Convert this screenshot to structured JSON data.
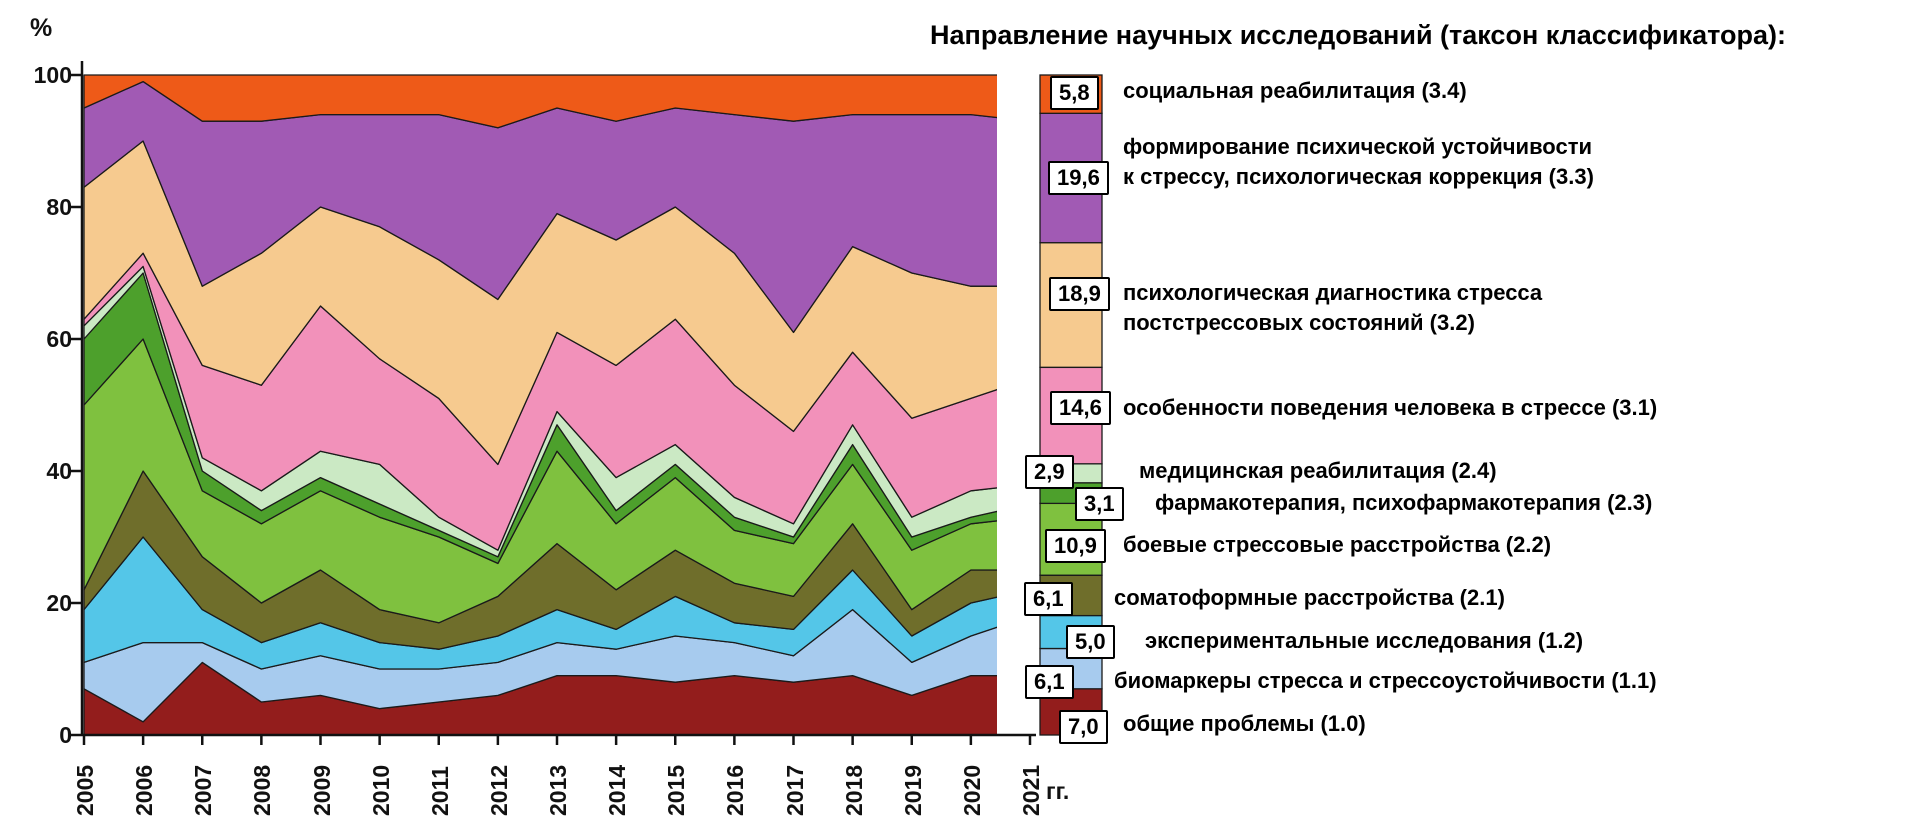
{
  "axes": {
    "y_unit": "%",
    "y_ticks": [
      "100",
      "80",
      "60",
      "40",
      "20",
      "0"
    ],
    "x_ticks": [
      "2005",
      "2006",
      "2007",
      "2008",
      "2009",
      "2010",
      "2011",
      "2012",
      "2013",
      "2014",
      "2015",
      "2016",
      "2017",
      "2018",
      "2019",
      "2020",
      "2021"
    ],
    "x_suffix": "гг."
  },
  "legend": {
    "title": "Направление научных исследований (таксон классификатора):",
    "items": [
      {
        "value": "5,8",
        "lines": [
          "социальная реабилитация (3.4)"
        ],
        "color": "#EE5A18"
      },
      {
        "value": "19,6",
        "lines": [
          "формирование психической устойчивости",
          "к стрессу, психологическая коррекция (3.3)"
        ],
        "color": "#A15AB4"
      },
      {
        "value": "18,9",
        "lines": [
          "психологическая диагностика стресса",
          "постстрессовых состояний (3.2)"
        ],
        "color": "#F6CA8F"
      },
      {
        "value": "14,6",
        "lines": [
          "особенности поведения человека в стрессе (3.1)"
        ],
        "color": "#F291BA"
      },
      {
        "value": "2,9",
        "lines": [
          "медицинская реабилитация (2.4)"
        ],
        "color": "#CBE9C4"
      },
      {
        "value": "3,1",
        "lines": [
          "фармакотерапия, психофармакотерапия (2.3)"
        ],
        "color": "#4DA02C"
      },
      {
        "value": "10,9",
        "lines": [
          "боевые стрессовые расстройства (2.2)"
        ],
        "color": "#7FC13F"
      },
      {
        "value": "6,1",
        "lines": [
          "соматоформные расстройства (2.1)"
        ],
        "color": "#6F6E2B"
      },
      {
        "value": "5,0",
        "lines": [
          "экспериментальные исследования (1.2)"
        ],
        "color": "#54C6E8"
      },
      {
        "value": "6,1",
        "lines": [
          "биомаркеры стресса и стрессоустойчивости (1.1)"
        ],
        "color": "#A7CBEE"
      },
      {
        "value": "7,0",
        "lines": [
          "общие проблемы (1.0)"
        ],
        "color": "#931D1C"
      }
    ]
  },
  "chart_data": {
    "type": "area",
    "stacked": true,
    "normalized_percent": true,
    "title": "Направление научных исследований (таксон классификатора)",
    "xlabel": "гг.",
    "ylabel": "%",
    "ylim": [
      0,
      100
    ],
    "legend_position": "right",
    "x": [
      2005,
      2006,
      2007,
      2008,
      2009,
      2010,
      2011,
      2012,
      2013,
      2014,
      2015,
      2016,
      2017,
      2018,
      2019,
      2020,
      2021
    ],
    "series": [
      {
        "code": "1.0",
        "name": "общие проблемы",
        "color": "#931D1C",
        "avg": 7.0,
        "values": [
          7,
          2,
          11,
          5,
          6,
          4,
          5,
          6,
          9,
          9,
          8,
          9,
          8,
          9,
          6,
          9,
          9
        ]
      },
      {
        "code": "1.1",
        "name": "биомаркеры стресса и стрессоустойчивости",
        "color": "#A7CBEE",
        "avg": 6.1,
        "values": [
          4,
          12,
          3,
          5,
          6,
          6,
          5,
          5,
          5,
          4,
          7,
          5,
          4,
          10,
          5,
          6,
          9
        ]
      },
      {
        "code": "1.2",
        "name": "экспериментальные исследования",
        "color": "#54C6E8",
        "avg": 5.0,
        "values": [
          8,
          16,
          5,
          4,
          5,
          4,
          3,
          4,
          5,
          3,
          6,
          3,
          4,
          6,
          4,
          5,
          4
        ]
      },
      {
        "code": "2.1",
        "name": "соматоформные расстройства",
        "color": "#6F6E2B",
        "avg": 6.1,
        "values": [
          3,
          10,
          8,
          6,
          8,
          5,
          4,
          6,
          10,
          6,
          7,
          6,
          5,
          7,
          4,
          5,
          3
        ]
      },
      {
        "code": "2.2",
        "name": "боевые стрессовые расстройства",
        "color": "#7FC13F",
        "avg": 10.9,
        "values": [
          28,
          20,
          10,
          12,
          12,
          14,
          13,
          5,
          14,
          10,
          11,
          8,
          8,
          9,
          9,
          7,
          8
        ]
      },
      {
        "code": "2.3",
        "name": "фармакотерапия, психофармакотерапия",
        "color": "#4DA02C",
        "avg": 3.1,
        "values": [
          10,
          10,
          3,
          2,
          2,
          2,
          1,
          1,
          4,
          2,
          2,
          2,
          1,
          3,
          2,
          1,
          2
        ]
      },
      {
        "code": "2.4",
        "name": "медицинская реабилитация",
        "color": "#CBE9C4",
        "avg": 2.9,
        "values": [
          2,
          1,
          2,
          3,
          4,
          6,
          2,
          1,
          2,
          5,
          3,
          3,
          2,
          3,
          3,
          4,
          3
        ]
      },
      {
        "code": "3.1",
        "name": "особенности поведения человека в стрессе",
        "color": "#F291BA",
        "avg": 14.6,
        "values": [
          1,
          2,
          14,
          16,
          22,
          16,
          18,
          13,
          12,
          17,
          19,
          17,
          14,
          11,
          15,
          14,
          16
        ]
      },
      {
        "code": "3.2",
        "name": "психологическая диагностика стресса постстрессовых состояний",
        "color": "#F6CA8F",
        "avg": 18.9,
        "values": [
          20,
          17,
          12,
          20,
          15,
          20,
          21,
          25,
          18,
          19,
          17,
          20,
          15,
          16,
          22,
          17,
          14
        ]
      },
      {
        "code": "3.3",
        "name": "формирование психической устойчивости к стрессу, психологическая коррекция",
        "color": "#A15AB4",
        "avg": 19.6,
        "values": [
          12,
          9,
          25,
          20,
          14,
          17,
          22,
          26,
          16,
          18,
          15,
          21,
          32,
          20,
          24,
          26,
          25
        ]
      },
      {
        "code": "3.4",
        "name": "социальная реабилитация",
        "color": "#EE5A18",
        "avg": 5.8,
        "values": [
          5,
          1,
          7,
          7,
          6,
          6,
          6,
          8,
          5,
          7,
          5,
          6,
          7,
          6,
          6,
          6,
          7
        ]
      }
    ]
  }
}
